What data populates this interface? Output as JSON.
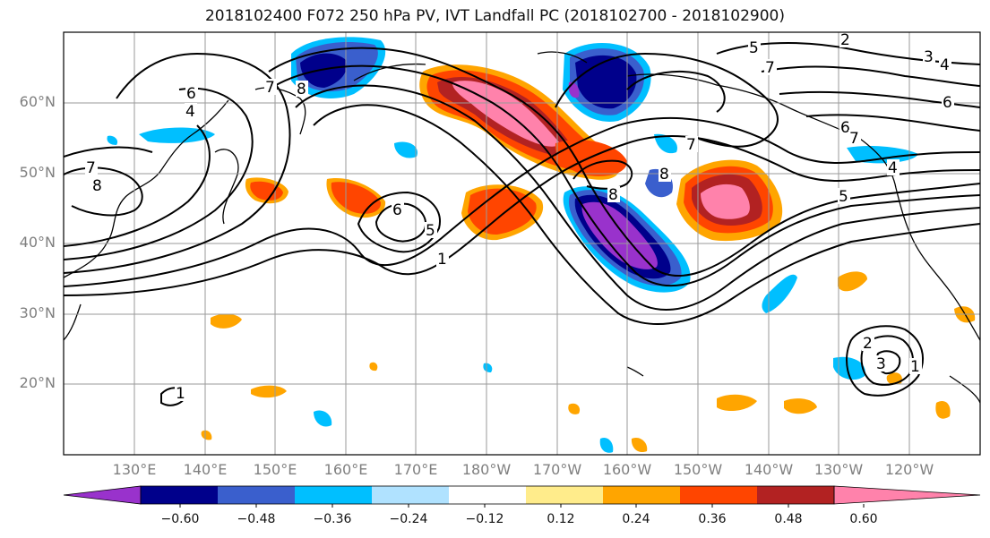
{
  "title": "2018102400 F072 250 hPa PV, IVT Landfall PC (2018102700 - 2018102900)",
  "map": {
    "extent_lon": [
      120,
      250
    ],
    "extent_lat": [
      10,
      70
    ],
    "latitude_labels": [
      "60°N",
      "50°N",
      "40°N",
      "30°N",
      "20°N"
    ],
    "longitude_labels": [
      "130°E",
      "140°E",
      "150°E",
      "160°E",
      "170°E",
      "180°W",
      "170°W",
      "160°W",
      "150°W",
      "140°W",
      "130°W",
      "120°W"
    ],
    "contour_labels": [
      "6",
      "4",
      "7",
      "8",
      "7",
      "8",
      "6",
      "5",
      "1",
      "8",
      "5",
      "8",
      "7",
      "6",
      "7",
      "4",
      "5",
      "7",
      "2",
      "3",
      "4",
      "6",
      "1",
      "2",
      "3",
      "1"
    ]
  },
  "colorbar": {
    "colors": [
      "#9932cc",
      "#00008b",
      "#3a5fcd",
      "#00bfff",
      "#b0e2ff",
      "#ffffff",
      "#ffec8b",
      "#ffa500",
      "#ff4500",
      "#b22222",
      "#ff82ab"
    ],
    "tick_labels": [
      "−0.60",
      "−0.48",
      "−0.36",
      "−0.24",
      "−0.12",
      "0.12",
      "0.24",
      "0.36",
      "0.48",
      "0.60"
    ]
  }
}
